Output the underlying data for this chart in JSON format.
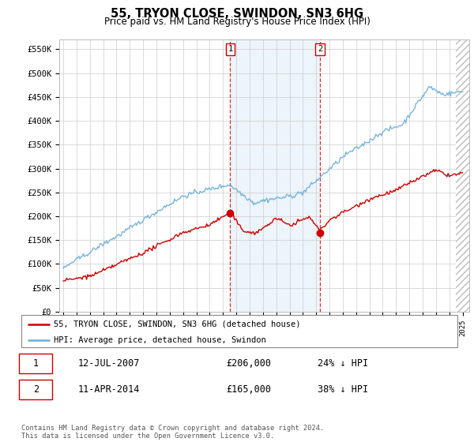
{
  "title": "55, TRYON CLOSE, SWINDON, SN3 6HG",
  "subtitle": "Price paid vs. HM Land Registry's House Price Index (HPI)",
  "ylabel_ticks": [
    "£0",
    "£50K",
    "£100K",
    "£150K",
    "£200K",
    "£250K",
    "£300K",
    "£350K",
    "£400K",
    "£450K",
    "£500K",
    "£550K"
  ],
  "ytick_values": [
    0,
    50000,
    100000,
    150000,
    200000,
    250000,
    300000,
    350000,
    400000,
    450000,
    500000,
    550000
  ],
  "ylim": [
    0,
    570000
  ],
  "hpi_color": "#6baed6",
  "price_color": "#cc0000",
  "vline_color": "#cc0000",
  "shade_color": "#c6dbef",
  "hatch_color": "#cccccc",
  "transaction1_date": 2007.54,
  "transaction1_price": 206000,
  "transaction2_date": 2014.28,
  "transaction2_price": 165000,
  "hatch_start": 2024.5,
  "legend_line1": "55, TRYON CLOSE, SWINDON, SN3 6HG (detached house)",
  "legend_line2": "HPI: Average price, detached house, Swindon",
  "table_row1": [
    "1",
    "12-JUL-2007",
    "£206,000",
    "24% ↓ HPI"
  ],
  "table_row2": [
    "2",
    "11-APR-2014",
    "£165,000",
    "38% ↓ HPI"
  ],
  "footnote": "Contains HM Land Registry data © Crown copyright and database right 2024.\nThis data is licensed under the Open Government Licence v3.0.",
  "background_color": "#ffffff",
  "plot_bg_color": "#ffffff",
  "grid_color": "#cccccc",
  "xlim_left": 1994.7,
  "xlim_right": 2025.5
}
